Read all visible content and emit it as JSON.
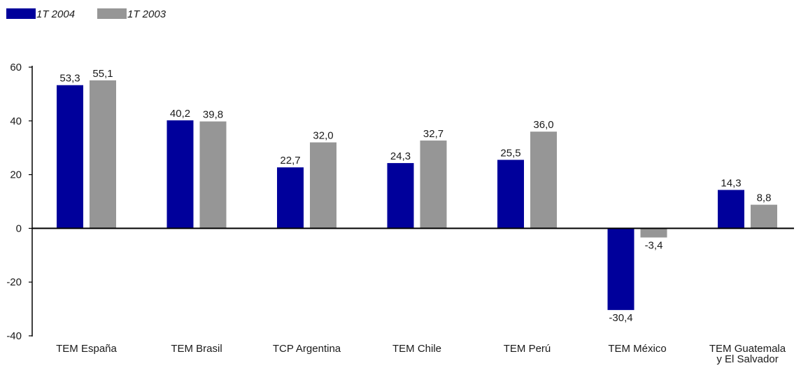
{
  "chart_data": {
    "type": "bar",
    "title": "",
    "xlabel": "",
    "ylabel": "",
    "legend_position": "top-left",
    "grid": false,
    "ylim": [
      -40,
      60
    ],
    "yticks": [
      60,
      40,
      20,
      0,
      -20,
      -40
    ],
    "ytick_labels": [
      "60",
      "40",
      "20",
      "0",
      "-20",
      "-40"
    ],
    "categories": [
      "TEM España",
      "TEM Brasil",
      "TCP Argentina",
      "TEM Chile",
      "TEM Perú",
      "TEM México",
      "TEM Guatemala y El Salvador"
    ],
    "category_lines": [
      [
        "TEM España"
      ],
      [
        "TEM Brasil"
      ],
      [
        "TCP Argentina"
      ],
      [
        "TEM Chile"
      ],
      [
        "TEM Perú"
      ],
      [
        "TEM México"
      ],
      [
        "TEM Guatemala",
        "y El Salvador"
      ]
    ],
    "series": [
      {
        "name": "1T 2004",
        "color": "#00009b",
        "values": [
          53.3,
          40.2,
          22.7,
          24.3,
          25.5,
          -30.4,
          14.3
        ],
        "labels": [
          "53,3",
          "40,2",
          "22,7",
          "24,3",
          "25,5",
          "-30,4",
          "14,3"
        ]
      },
      {
        "name": "1T 2003",
        "color": "#969696",
        "values": [
          55.1,
          39.8,
          32.0,
          32.7,
          36.0,
          -3.4,
          8.8
        ],
        "labels": [
          "55,1",
          "39,8",
          "32,0",
          "32,7",
          "36,0",
          "-3,4",
          "8,8"
        ]
      }
    ]
  }
}
